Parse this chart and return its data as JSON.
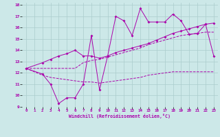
{
  "background_color": "#cce8e8",
  "grid_color": "#aacccc",
  "line_color": "#aa00aa",
  "xlabel": "Windchill (Refroidissement éolien,°C)",
  "xlim": [
    -0.5,
    23.5
  ],
  "ylim": [
    9,
    18.2
  ],
  "xticks": [
    0,
    1,
    2,
    3,
    4,
    5,
    6,
    7,
    8,
    9,
    10,
    11,
    12,
    13,
    14,
    15,
    16,
    17,
    18,
    19,
    20,
    21,
    22,
    23
  ],
  "yticks": [
    9,
    10,
    11,
    12,
    13,
    14,
    15,
    16,
    17,
    18
  ],
  "line1_x": [
    0,
    2,
    3,
    4,
    5,
    6,
    7,
    8,
    9,
    10,
    11,
    12,
    13,
    14,
    15,
    16,
    17,
    18,
    19,
    20,
    21,
    22,
    23
  ],
  "line1_y": [
    12.4,
    11.9,
    11.0,
    9.3,
    9.8,
    9.8,
    11.0,
    15.3,
    10.5,
    13.5,
    17.0,
    16.6,
    15.3,
    17.7,
    16.5,
    16.5,
    16.5,
    17.2,
    16.6,
    15.4,
    15.5,
    16.3,
    13.5
  ],
  "line2_x": [
    0,
    2,
    3,
    4,
    5,
    6,
    7,
    8,
    9,
    10,
    11,
    12,
    13,
    14,
    15,
    16,
    17,
    18,
    19,
    20,
    21,
    22,
    23
  ],
  "line2_y": [
    12.4,
    12.9,
    13.2,
    13.5,
    13.7,
    14.0,
    13.5,
    13.5,
    13.3,
    13.5,
    13.8,
    14.0,
    14.2,
    14.4,
    14.6,
    14.9,
    15.2,
    15.5,
    15.7,
    15.9,
    16.1,
    16.3,
    16.4
  ],
  "line3_x": [
    0,
    2,
    3,
    4,
    5,
    6,
    7,
    8,
    9,
    10,
    11,
    12,
    13,
    14,
    15,
    16,
    17,
    18,
    19,
    20,
    21,
    22,
    23
  ],
  "line3_y": [
    12.4,
    12.4,
    12.4,
    12.4,
    12.4,
    12.4,
    12.9,
    13.1,
    13.2,
    13.4,
    13.6,
    13.8,
    14.0,
    14.2,
    14.5,
    14.7,
    14.9,
    15.1,
    15.3,
    15.4,
    15.5,
    15.6,
    15.6
  ],
  "line4_x": [
    0,
    2,
    3,
    4,
    5,
    6,
    7,
    8,
    9,
    10,
    11,
    12,
    13,
    14,
    15,
    16,
    17,
    18,
    19,
    20,
    21,
    22,
    23
  ],
  "line4_y": [
    12.4,
    11.8,
    11.6,
    11.5,
    11.4,
    11.3,
    11.2,
    11.2,
    11.1,
    11.2,
    11.3,
    11.4,
    11.5,
    11.6,
    11.8,
    11.9,
    12.0,
    12.1,
    12.1,
    12.1,
    12.1,
    12.1,
    12.1
  ]
}
